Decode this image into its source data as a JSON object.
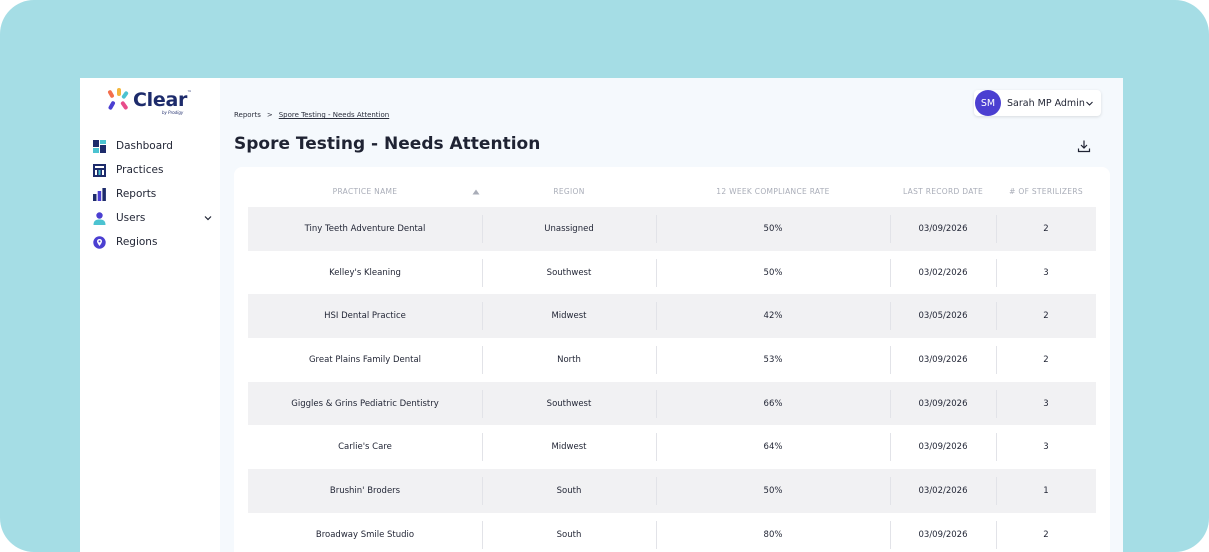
{
  "app": {
    "brand": "Clear",
    "brand_tm": "™",
    "brand_sub": "by Prodigy"
  },
  "sidebar": {
    "items": [
      {
        "label": "Dashboard",
        "icon": "dashboard-icon"
      },
      {
        "label": "Practices",
        "icon": "practices-icon"
      },
      {
        "label": "Reports",
        "icon": "reports-icon"
      },
      {
        "label": "Users",
        "icon": "users-icon",
        "expandable": true
      },
      {
        "label": "Regions",
        "icon": "regions-icon"
      }
    ]
  },
  "user": {
    "initials": "SM",
    "name": "Sarah MP Admin"
  },
  "breadcrumb": {
    "root": "Reports",
    "separator": ">",
    "current": "Spore Testing - Needs Attention"
  },
  "page": {
    "title": "Spore Testing - Needs Attention"
  },
  "table": {
    "columns": [
      "Practice Name",
      "Region",
      "12 Week Compliance Rate",
      "Last Record Date",
      "# of Sterilizers"
    ],
    "sort": {
      "column": "Practice Name",
      "direction": "ascending"
    },
    "rows": [
      {
        "practice": "Tiny Teeth Adventure Dental",
        "region": "Unassigned",
        "rate": "50%",
        "date": "03/09/2026",
        "sterilizers": "2"
      },
      {
        "practice": "Kelley's Kleaning",
        "region": "Southwest",
        "rate": "50%",
        "date": "03/02/2026",
        "sterilizers": "3"
      },
      {
        "practice": "HSI Dental Practice",
        "region": "Midwest",
        "rate": "42%",
        "date": "03/05/2026",
        "sterilizers": "2"
      },
      {
        "practice": "Great Plains Family Dental",
        "region": "North",
        "rate": "53%",
        "date": "03/09/2026",
        "sterilizers": "2"
      },
      {
        "practice": "Giggles & Grins Pediatric Dentistry",
        "region": "Southwest",
        "rate": "66%",
        "date": "03/09/2026",
        "sterilizers": "3"
      },
      {
        "practice": "Carlie's Care",
        "region": "Midwest",
        "rate": "64%",
        "date": "03/09/2026",
        "sterilizers": "3"
      },
      {
        "practice": "Brushin' Broders",
        "region": "South",
        "rate": "50%",
        "date": "03/02/2026",
        "sterilizers": "1"
      },
      {
        "practice": "Broadway Smile Studio",
        "region": "South",
        "rate": "80%",
        "date": "03/09/2026",
        "sterilizers": "2"
      }
    ]
  },
  "colors": {
    "frame": "#a5dde5",
    "accent": "#4b3fd1",
    "brand_navy": "#1d2b6b",
    "row_shade": "#f1f1f3"
  }
}
